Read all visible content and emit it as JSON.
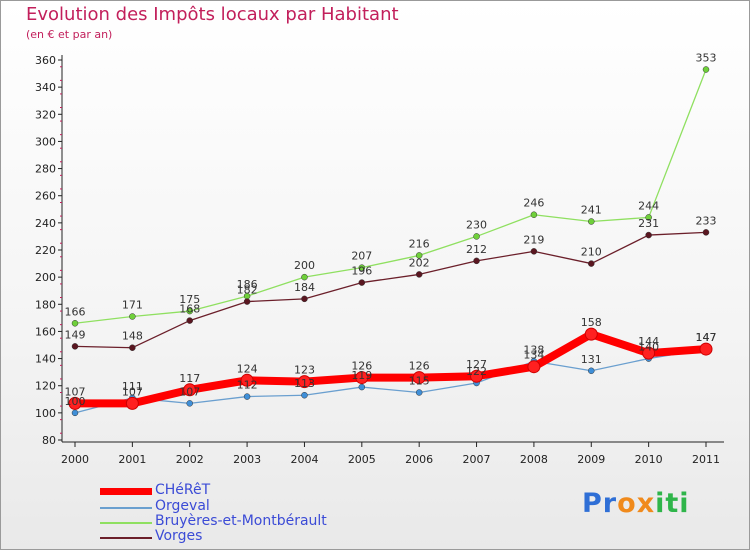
{
  "chart_data": {
    "type": "line",
    "title": "Evolution des Impôts locaux par Habitant",
    "subtitle": "(en € et par an)",
    "xlabel": "",
    "ylabel": "",
    "ylim": [
      80,
      360
    ],
    "yticks": [
      80,
      100,
      120,
      140,
      160,
      180,
      200,
      220,
      240,
      260,
      280,
      300,
      320,
      340,
      360
    ],
    "categories": [
      "2000",
      "2001",
      "2002",
      "2003",
      "2004",
      "2005",
      "2006",
      "2007",
      "2008",
      "2009",
      "2010",
      "2011"
    ],
    "series": [
      {
        "name": "CHéRêT",
        "values": [
          107,
          107,
          117,
          124,
          123,
          126,
          126,
          127,
          134,
          158,
          144,
          147
        ],
        "labels": [
          "107",
          "107",
          "117",
          "124",
          "123",
          "126",
          "126",
          "127",
          "134",
          "158",
          "144",
          "147"
        ],
        "color": "#ff0000",
        "marker_fill": "#ff2020",
        "width": "thick"
      },
      {
        "name": "Orgeval",
        "values": [
          100,
          111,
          107,
          112,
          113,
          119,
          115,
          122,
          138,
          131,
          140,
          147
        ],
        "labels": [
          "100",
          "111",
          "107",
          "112",
          "113",
          "119",
          "115",
          "122",
          "138",
          "131",
          "140",
          "147"
        ],
        "color": "#6a9fcf",
        "marker_fill": "#3f8fd8",
        "width": "thin"
      },
      {
        "name": "Bruyères-et-Montbérault",
        "values": [
          166,
          171,
          175,
          186,
          200,
          207,
          216,
          230,
          246,
          241,
          244,
          353
        ],
        "labels": [
          "166",
          "171",
          "175",
          "186",
          "200",
          "207",
          "216",
          "230",
          "246",
          "241",
          "244",
          "353"
        ],
        "color": "#8fe060",
        "marker_fill": "#6fd03a",
        "width": "thin"
      },
      {
        "name": "Vorges",
        "values": [
          149,
          148,
          168,
          182,
          184,
          196,
          202,
          212,
          219,
          210,
          231,
          233
        ],
        "labels": [
          "149",
          "148",
          "168",
          "182",
          "184",
          "196",
          "202",
          "212",
          "219",
          "210",
          "231",
          "233"
        ],
        "color": "#6b1f2a",
        "marker_fill": "#5a1620",
        "width": "thin"
      }
    ],
    "legend_position": "bottom-left",
    "grid": false
  },
  "logo": {
    "letters": [
      "P",
      "r",
      "o",
      "x",
      "i",
      "t",
      "i"
    ],
    "colors": [
      "#2f6fd6",
      "#2f6fd6",
      "#f08a1c",
      "#f08a1c",
      "#2fb54a",
      "#2fb54a",
      "#2fb54a"
    ]
  }
}
